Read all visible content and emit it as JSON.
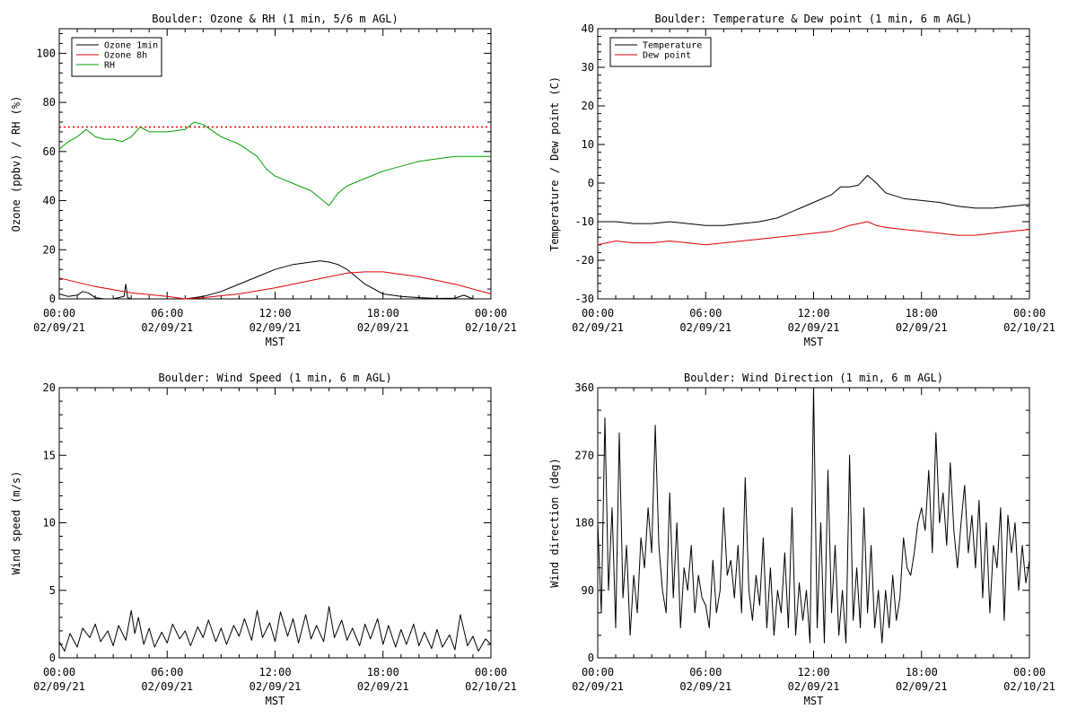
{
  "chart_data": [
    {
      "type": "line",
      "title": "Boulder: Ozone & RH (1 min, 5/6 m AGL)",
      "xlabel": "MST",
      "ylabel": "Ozone (ppbv) / RH (%)",
      "xlim": [
        0,
        24
      ],
      "ylim": [
        0,
        110
      ],
      "x_ticks": [
        0,
        6,
        12,
        18,
        24
      ],
      "x_tick_labels": [
        [
          "00:00",
          "02/09/21"
        ],
        [
          "06:00",
          "02/09/21"
        ],
        [
          "12:00",
          "02/09/21"
        ],
        [
          "18:00",
          "02/09/21"
        ],
        [
          "00:00",
          "02/10/21"
        ]
      ],
      "y_ticks": [
        0,
        20,
        40,
        60,
        80,
        100
      ],
      "y_tick_labels": [
        "0",
        "20",
        "40",
        "60",
        "80",
        "100"
      ],
      "legend_position": "top-left",
      "reference_line": {
        "y": 70,
        "color": "#e00000",
        "style": "dotted"
      },
      "series": [
        {
          "name": "Ozone 1min",
          "color": "#000000",
          "x": [
            0,
            0.5,
            1,
            1.3,
            1.6,
            2,
            2.5,
            3,
            3.6,
            3.7,
            3.8,
            4,
            5,
            6,
            7,
            8,
            9,
            10,
            11,
            12,
            13,
            14,
            14.5,
            15,
            15.5,
            16,
            16.5,
            17,
            18,
            19,
            20,
            21,
            22,
            22.5,
            23,
            24
          ],
          "y": [
            2,
            1,
            1.5,
            3,
            2.5,
            0.5,
            0,
            0,
            1,
            6,
            0.5,
            0,
            0,
            0,
            0,
            1,
            3,
            6,
            9,
            12,
            14,
            15,
            15.5,
            15,
            14,
            12,
            9,
            6,
            2,
            1,
            0.5,
            0.2,
            0.3,
            1.5,
            0,
            0
          ]
        },
        {
          "name": "Ozone 8h",
          "color": "#e00000",
          "x": [
            0,
            2,
            4,
            6,
            7,
            8,
            10,
            12,
            14,
            16,
            17,
            18,
            20,
            22,
            24
          ],
          "y": [
            8.5,
            5,
            2.5,
            1,
            0,
            0.5,
            2,
            4.5,
            7.5,
            10.5,
            11,
            11,
            9,
            6,
            2
          ]
        },
        {
          "name": "RH",
          "color": "#00a000",
          "x": [
            0,
            0.5,
            1,
            1.5,
            2,
            2.5,
            3,
            3.5,
            4,
            4.5,
            5,
            5.5,
            6,
            7,
            7.5,
            8,
            9,
            10,
            11,
            11.5,
            12,
            13,
            14,
            14.5,
            15,
            15.5,
            16,
            17,
            18,
            19,
            20,
            21,
            22,
            23,
            24
          ],
          "y": [
            61,
            64,
            66,
            69,
            66,
            65,
            65,
            64,
            66,
            70,
            68,
            68,
            68,
            69,
            72,
            71,
            66,
            63,
            58,
            53,
            50,
            47,
            44,
            41,
            38,
            43,
            46,
            49,
            52,
            54,
            56,
            57,
            58,
            58,
            58
          ]
        }
      ]
    },
    {
      "type": "line",
      "title": "Boulder: Temperature & Dew point (1 min, 6 m AGL)",
      "xlabel": "MST",
      "ylabel": "Temperature / Dew point (C)",
      "xlim": [
        0,
        24
      ],
      "ylim": [
        -30,
        40
      ],
      "x_ticks": [
        0,
        6,
        12,
        18,
        24
      ],
      "x_tick_labels": [
        [
          "00:00",
          "02/09/21"
        ],
        [
          "06:00",
          "02/09/21"
        ],
        [
          "12:00",
          "02/09/21"
        ],
        [
          "18:00",
          "02/09/21"
        ],
        [
          "00:00",
          "02/10/21"
        ]
      ],
      "y_ticks": [
        -30,
        -20,
        -10,
        0,
        10,
        20,
        30,
        40
      ],
      "y_tick_labels": [
        "-30",
        "-20",
        "-10",
        "0",
        "10",
        "20",
        "30",
        "40"
      ],
      "legend_position": "top-left",
      "series": [
        {
          "name": "Temperature",
          "color": "#000000",
          "x": [
            0,
            1,
            2,
            3,
            4,
            5,
            6,
            7,
            8,
            9,
            10,
            11,
            12,
            13,
            13.5,
            14,
            14.5,
            15,
            15.5,
            16,
            17,
            18,
            19,
            20,
            21,
            22,
            23,
            24
          ],
          "y": [
            -10,
            -10,
            -10.5,
            -10.5,
            -10,
            -10.5,
            -11,
            -11,
            -10.5,
            -10,
            -9,
            -7,
            -5,
            -3,
            -1,
            -1,
            -0.5,
            2,
            0,
            -2.5,
            -4,
            -4.5,
            -5,
            -6,
            -6.5,
            -6.5,
            -6,
            -5.5
          ]
        },
        {
          "name": "Dew point",
          "color": "#e00000",
          "x": [
            0,
            1,
            2,
            3,
            4,
            5,
            6,
            7,
            8,
            9,
            10,
            11,
            12,
            13,
            14,
            14.5,
            15,
            15.5,
            16,
            17,
            18,
            19,
            20,
            21,
            22,
            23,
            24
          ],
          "y": [
            -16,
            -15,
            -15.5,
            -15.5,
            -15,
            -15.5,
            -16,
            -15.5,
            -15,
            -14.5,
            -14,
            -13.5,
            -13,
            -12.5,
            -11,
            -10.5,
            -10,
            -11,
            -11.5,
            -12,
            -12.5,
            -13,
            -13.5,
            -13.5,
            -13,
            -12.5,
            -12
          ]
        }
      ]
    },
    {
      "type": "line",
      "title": "Boulder: Wind Speed (1 min, 6 m AGL)",
      "xlabel": "MST",
      "ylabel": "Wind speed (m/s)",
      "xlim": [
        0,
        24
      ],
      "ylim": [
        0,
        20
      ],
      "x_ticks": [
        0,
        6,
        12,
        18,
        24
      ],
      "x_tick_labels": [
        [
          "00:00",
          "02/09/21"
        ],
        [
          "06:00",
          "02/09/21"
        ],
        [
          "12:00",
          "02/09/21"
        ],
        [
          "18:00",
          "02/09/21"
        ],
        [
          "00:00",
          "02/10/21"
        ]
      ],
      "y_ticks": [
        0,
        5,
        10,
        15,
        20
      ],
      "y_tick_labels": [
        "0",
        "5",
        "10",
        "15",
        "20"
      ],
      "series": [
        {
          "color": "#000000",
          "x": [
            0,
            0.3,
            0.6,
            1,
            1.3,
            1.7,
            2,
            2.3,
            2.7,
            3,
            3.3,
            3.7,
            4,
            4.2,
            4.4,
            4.7,
            5,
            5.3,
            5.7,
            6,
            6.3,
            6.7,
            7,
            7.3,
            7.7,
            8,
            8.3,
            8.7,
            9,
            9.3,
            9.7,
            10,
            10.3,
            10.7,
            11,
            11.3,
            11.7,
            12,
            12.3,
            12.7,
            13,
            13.3,
            13.7,
            14,
            14.3,
            14.7,
            15,
            15.3,
            15.7,
            16,
            16.3,
            16.7,
            17,
            17.3,
            17.7,
            18,
            18.3,
            18.7,
            19,
            19.3,
            19.7,
            20,
            20.3,
            20.7,
            21,
            21.3,
            21.7,
            22,
            22.3,
            22.7,
            23,
            23.3,
            23.7,
            24
          ],
          "y": [
            1.2,
            0.5,
            1.8,
            0.8,
            2.2,
            1.5,
            2.5,
            1.2,
            2.0,
            0.9,
            2.4,
            1.3,
            3.5,
            1.8,
            3.0,
            1.0,
            2.2,
            0.8,
            1.9,
            1.1,
            2.5,
            1.4,
            2.0,
            0.9,
            2.3,
            1.5,
            2.8,
            1.2,
            2.2,
            1.0,
            2.4,
            1.6,
            2.9,
            1.3,
            3.5,
            1.5,
            2.6,
            1.2,
            3.4,
            1.6,
            2.9,
            1.1,
            3.2,
            1.4,
            2.4,
            1.2,
            3.8,
            1.5,
            2.8,
            1.3,
            2.2,
            0.9,
            2.5,
            1.4,
            2.9,
            1.0,
            2.4,
            0.8,
            2.1,
            1.0,
            2.5,
            0.9,
            1.9,
            0.7,
            2.1,
            0.8,
            1.7,
            0.6,
            3.2,
            0.9,
            1.6,
            0.5,
            1.4,
            1.0
          ]
        }
      ]
    },
    {
      "type": "line",
      "title": "Boulder: Wind Direction (1 min, 6 m AGL)",
      "xlabel": "MST",
      "ylabel": "Wind direction (deg)",
      "xlim": [
        0,
        24
      ],
      "ylim": [
        0,
        360
      ],
      "x_ticks": [
        0,
        6,
        12,
        18,
        24
      ],
      "x_tick_labels": [
        [
          "00:00",
          "02/09/21"
        ],
        [
          "06:00",
          "02/09/21"
        ],
        [
          "12:00",
          "02/09/21"
        ],
        [
          "18:00",
          "02/09/21"
        ],
        [
          "00:00",
          "02/10/21"
        ]
      ],
      "y_ticks": [
        0,
        90,
        180,
        270,
        360
      ],
      "y_tick_labels": [
        "0",
        "90",
        "180",
        "270",
        "360"
      ],
      "series": [
        {
          "color": "#000000",
          "x": [
            0,
            0.2,
            0.4,
            0.6,
            0.8,
            1.0,
            1.2,
            1.4,
            1.6,
            1.8,
            2.0,
            2.2,
            2.4,
            2.6,
            2.8,
            3.0,
            3.2,
            3.4,
            3.6,
            3.8,
            4.0,
            4.2,
            4.4,
            4.6,
            4.8,
            5.0,
            5.2,
            5.4,
            5.6,
            5.8,
            6.0,
            6.2,
            6.4,
            6.6,
            6.8,
            7.0,
            7.2,
            7.4,
            7.6,
            7.8,
            8.0,
            8.2,
            8.4,
            8.6,
            8.8,
            9.0,
            9.2,
            9.4,
            9.6,
            9.8,
            10.0,
            10.2,
            10.4,
            10.6,
            10.8,
            11.0,
            11.2,
            11.4,
            11.6,
            11.8,
            12.0,
            12.2,
            12.4,
            12.6,
            12.8,
            13.0,
            13.2,
            13.4,
            13.6,
            13.8,
            14.0,
            14.2,
            14.4,
            14.6,
            14.8,
            15.0,
            15.2,
            15.4,
            15.6,
            15.8,
            16.0,
            16.2,
            16.4,
            16.6,
            16.8,
            17.0,
            17.2,
            17.4,
            17.6,
            17.8,
            18.0,
            18.2,
            18.4,
            18.6,
            18.8,
            19.0,
            19.2,
            19.4,
            19.6,
            19.8,
            20.0,
            20.2,
            20.4,
            20.6,
            20.8,
            21.0,
            21.2,
            21.4,
            21.6,
            21.8,
            22.0,
            22.2,
            22.4,
            22.6,
            22.8,
            23.0,
            23.2,
            23.4,
            23.6,
            23.8,
            24.0
          ],
          "y": [
            180,
            60,
            320,
            90,
            200,
            40,
            300,
            80,
            150,
            30,
            110,
            60,
            160,
            120,
            200,
            140,
            310,
            150,
            90,
            60,
            220,
            80,
            180,
            40,
            120,
            90,
            150,
            60,
            110,
            80,
            70,
            40,
            130,
            60,
            90,
            200,
            110,
            130,
            80,
            150,
            60,
            240,
            90,
            50,
            110,
            70,
            160,
            40,
            120,
            30,
            90,
            60,
            140,
            40,
            200,
            30,
            100,
            50,
            90,
            20,
            360,
            40,
            180,
            20,
            250,
            60,
            150,
            30,
            90,
            20,
            270,
            50,
            120,
            40,
            200,
            60,
            150,
            40,
            90,
            20,
            90,
            40,
            110,
            50,
            80,
            160,
            120,
            110,
            140,
            180,
            200,
            170,
            250,
            140,
            300,
            180,
            220,
            150,
            260,
            170,
            120,
            180,
            230,
            140,
            190,
            120,
            210,
            80,
            180,
            60,
            150,
            120,
            200,
            50,
            190,
            140,
            180,
            90,
            150,
            100,
            130
          ]
        }
      ]
    }
  ]
}
